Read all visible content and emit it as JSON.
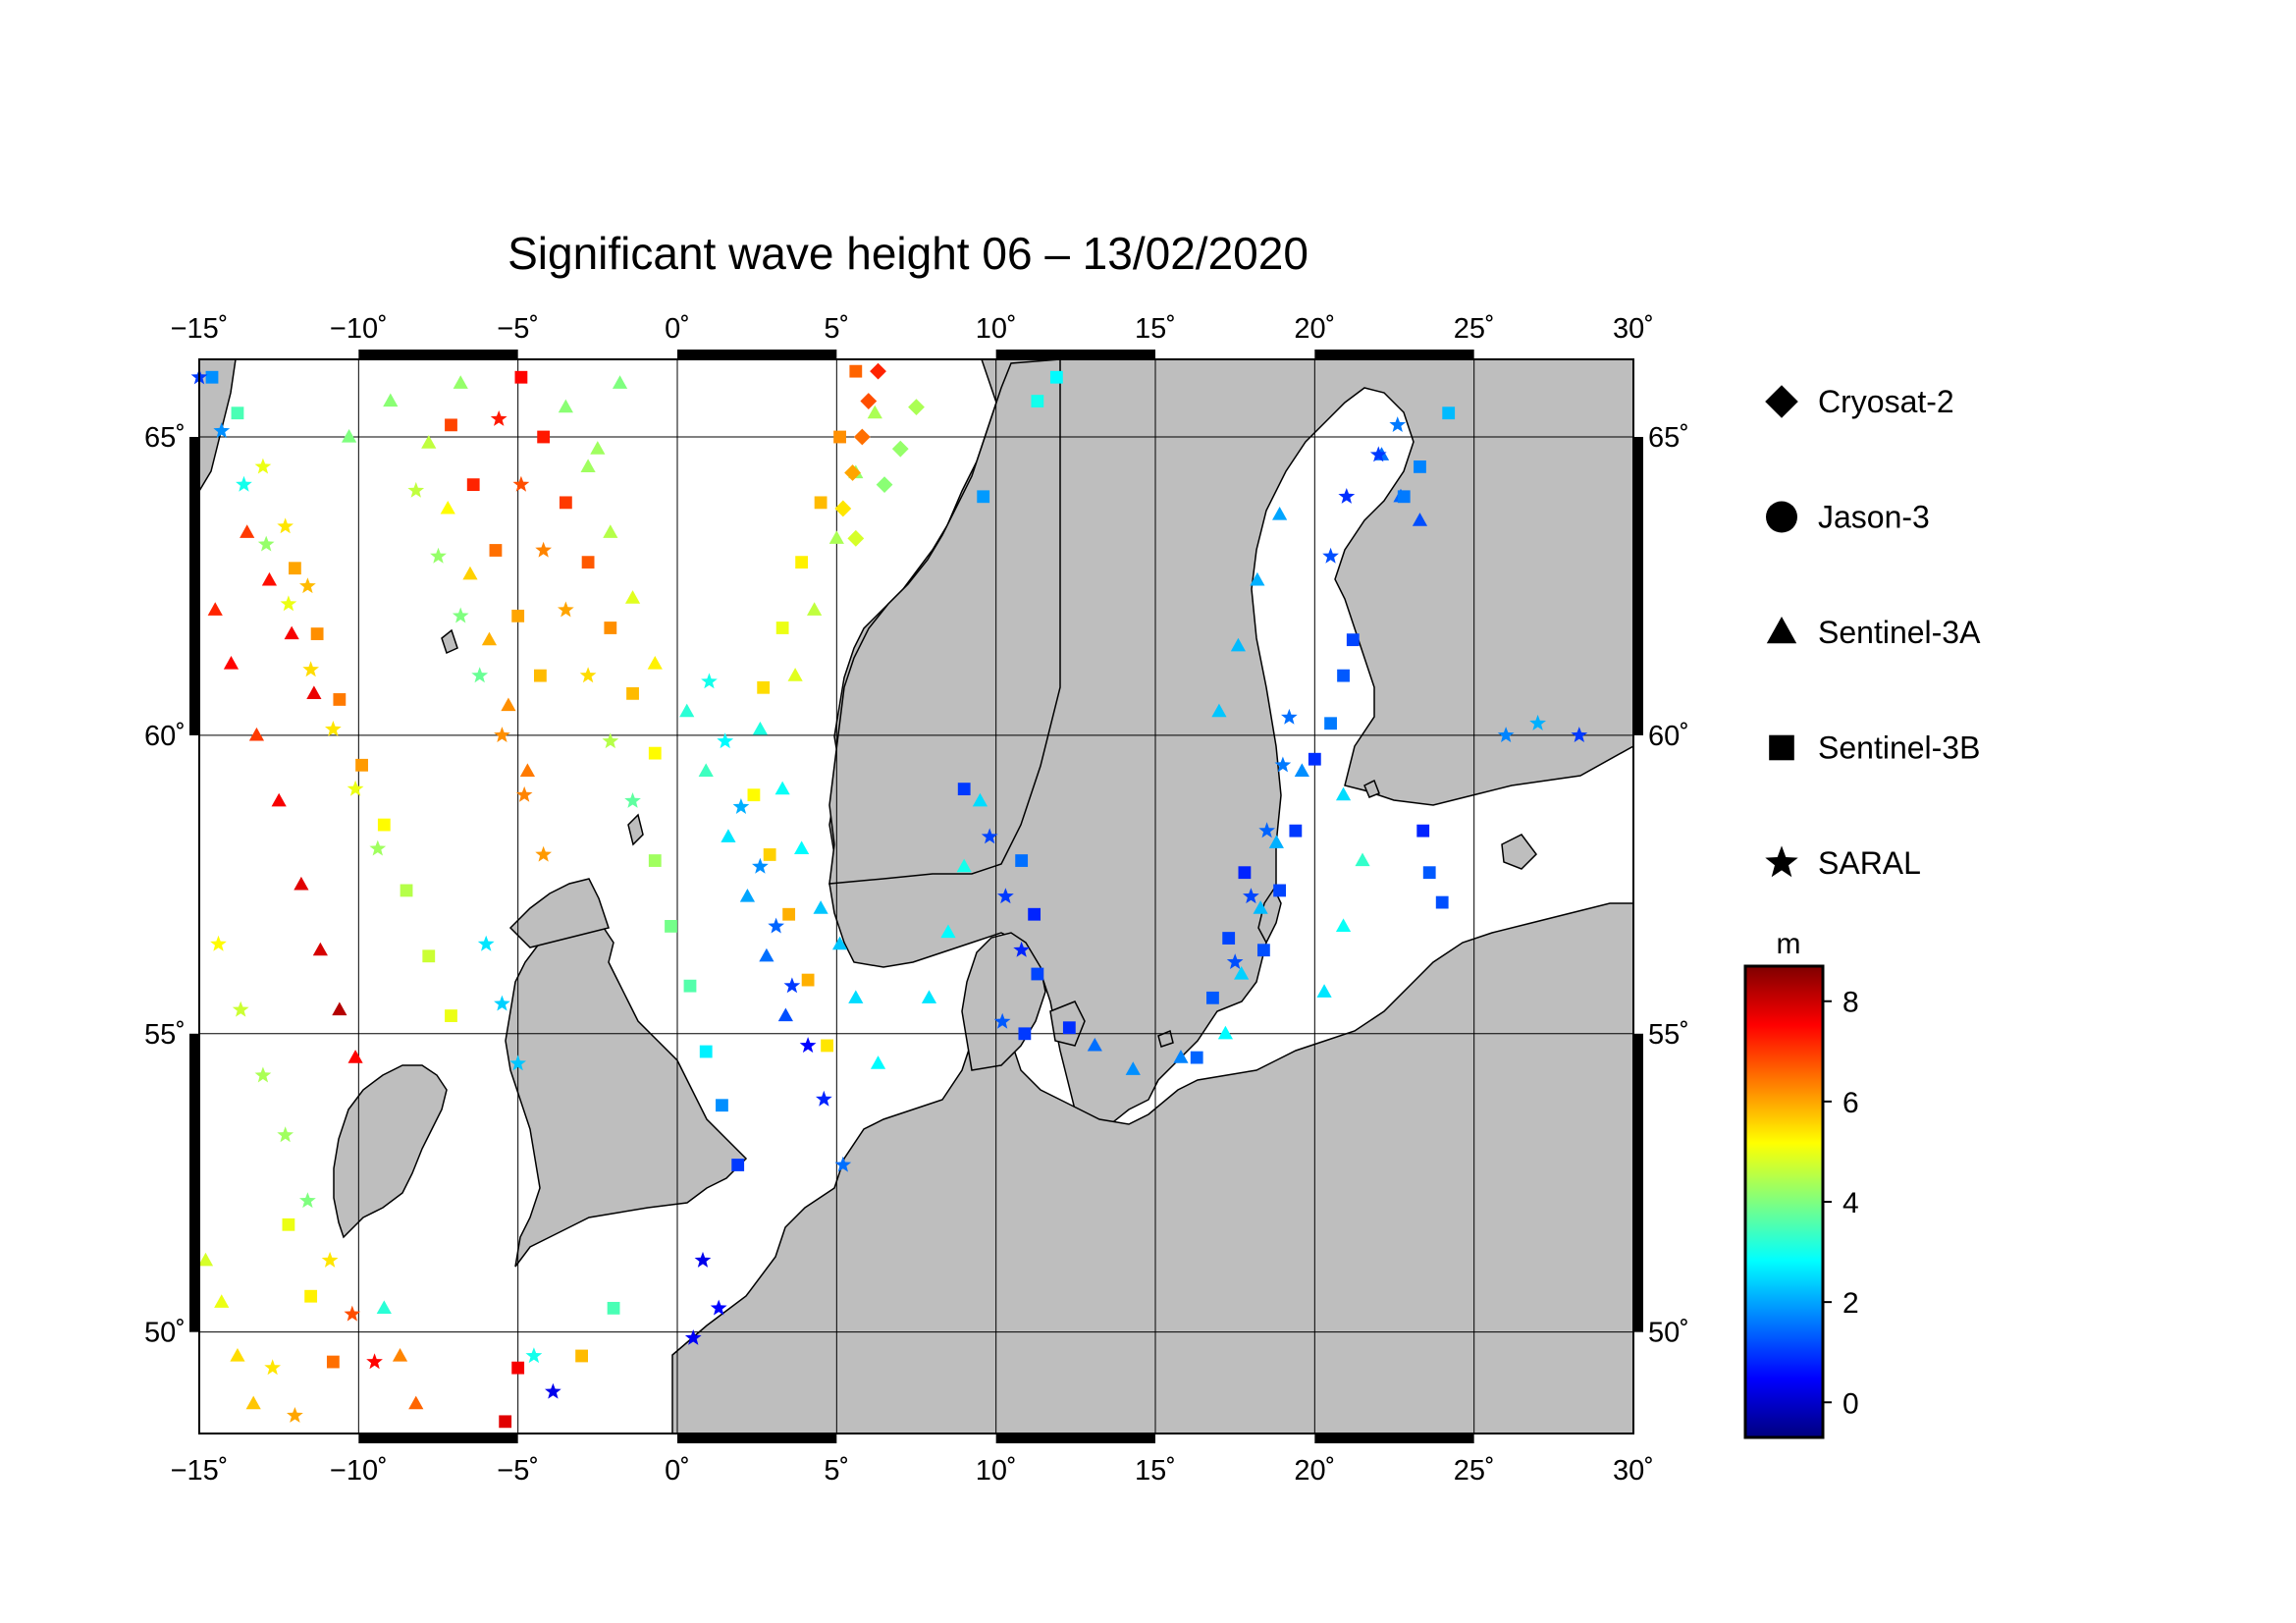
{
  "title": "Significant wave height 06 – 13/02/2020",
  "map": {
    "lon_range": [
      -15,
      30
    ],
    "lat_range": [
      48.3,
      66.3
    ],
    "lon_ticks": [
      -15,
      -10,
      -5,
      0,
      5,
      10,
      15,
      20,
      25,
      30
    ],
    "lat_ticks": [
      50,
      55,
      60,
      65
    ],
    "lon_tick_labels": [
      "−15˚",
      "−10˚",
      "−5˚",
      "0˚",
      "5˚",
      "10˚",
      "15˚",
      "20˚",
      "25˚",
      "30˚"
    ],
    "lat_tick_labels": [
      "50˚",
      "55˚",
      "60˚",
      "65˚"
    ],
    "land_color": "#bebebe",
    "sea_color": "#ffffff",
    "gridlines": true
  },
  "legend": {
    "items": [
      {
        "label": "Cryosat-2",
        "symbol": "diamond-icon"
      },
      {
        "label": "Jason-3",
        "symbol": "circle-icon"
      },
      {
        "label": "Sentinel-3A",
        "symbol": "triangle-icon"
      },
      {
        "label": "Sentinel-3B",
        "symbol": "square-icon"
      },
      {
        "label": "SARAL",
        "symbol": "star-icon"
      }
    ]
  },
  "colorbar": {
    "unit": "m",
    "range": [
      -0.7,
      8.7
    ],
    "ticks": [
      0,
      2,
      4,
      6,
      8
    ],
    "tick_labels": [
      "0",
      "2",
      "4",
      "6",
      "8"
    ],
    "palette": [
      "#00007f",
      "#0000ff",
      "#007fff",
      "#00ffff",
      "#7fff7f",
      "#ffff00",
      "#ff7f00",
      "#ff0000",
      "#7f0000"
    ]
  },
  "chart_data": {
    "type": "scatter",
    "title": "Significant wave height 06 – 13/02/2020",
    "xlim": [
      -15,
      30
    ],
    "ylim": [
      48.3,
      66.3
    ],
    "series": [
      {
        "name": "Sentinel-3A",
        "marker": "triangle",
        "points": [
          [
            -14.5,
            62.1,
            7.2
          ],
          [
            -14.0,
            61.2,
            7.5
          ],
          [
            -13.2,
            60.0,
            7.0
          ],
          [
            -12.5,
            58.9,
            7.6
          ],
          [
            -11.8,
            57.5,
            7.8
          ],
          [
            -11.2,
            56.4,
            7.9
          ],
          [
            -10.6,
            55.4,
            8.2
          ],
          [
            -10.1,
            54.6,
            7.5
          ],
          [
            -13.5,
            63.4,
            7.0
          ],
          [
            -12.8,
            62.6,
            7.4
          ],
          [
            -12.1,
            61.7,
            7.6
          ],
          [
            -11.4,
            60.7,
            7.7
          ],
          [
            -14.8,
            51.2,
            4.8
          ],
          [
            -14.3,
            50.5,
            5.0
          ],
          [
            -13.8,
            49.6,
            5.5
          ],
          [
            -13.3,
            48.8,
            5.7
          ],
          [
            -9.2,
            50.4,
            3.2
          ],
          [
            -8.7,
            49.6,
            6.3
          ],
          [
            -8.2,
            48.8,
            6.6
          ],
          [
            -7.8,
            64.9,
            4.6
          ],
          [
            -7.2,
            63.8,
            5.2
          ],
          [
            -6.5,
            62.7,
            5.6
          ],
          [
            -5.9,
            61.6,
            5.9
          ],
          [
            -5.3,
            60.5,
            6.2
          ],
          [
            -4.7,
            59.4,
            6.4
          ],
          [
            -3.5,
            65.5,
            4.1
          ],
          [
            -2.8,
            64.5,
            4.3
          ],
          [
            -2.1,
            63.4,
            4.5
          ],
          [
            -1.4,
            62.3,
            4.9
          ],
          [
            -0.7,
            61.2,
            5.3
          ],
          [
            0.3,
            60.4,
            3.2
          ],
          [
            0.9,
            59.4,
            3.4
          ],
          [
            1.6,
            58.3,
            2.6
          ],
          [
            2.2,
            57.3,
            2.0
          ],
          [
            2.8,
            56.3,
            1.5
          ],
          [
            3.4,
            55.3,
            1.2
          ],
          [
            2.6,
            60.1,
            3.1
          ],
          [
            3.3,
            59.1,
            2.9
          ],
          [
            3.9,
            58.1,
            2.8
          ],
          [
            4.5,
            57.1,
            2.3
          ],
          [
            5.1,
            56.5,
            2.3
          ],
          [
            5.6,
            55.6,
            2.5
          ],
          [
            6.3,
            54.5,
            2.8
          ],
          [
            9.5,
            58.9,
            2.5
          ],
          [
            9.0,
            57.8,
            3.0
          ],
          [
            8.5,
            56.7,
            2.8
          ],
          [
            7.9,
            55.6,
            2.6
          ],
          [
            6.2,
            65.4,
            4.4
          ],
          [
            5.6,
            64.4,
            4.2
          ],
          [
            5.0,
            63.3,
            4.4
          ],
          [
            4.3,
            62.1,
            4.6
          ],
          [
            3.7,
            61.0,
            4.9
          ],
          [
            -1.8,
            65.9,
            4.0
          ],
          [
            -2.5,
            64.8,
            4.3
          ],
          [
            18.9,
            63.7,
            2.0
          ],
          [
            18.2,
            62.6,
            2.1
          ],
          [
            17.6,
            61.5,
            2.2
          ],
          [
            17.0,
            60.4,
            2.3
          ],
          [
            19.6,
            59.4,
            1.8
          ],
          [
            18.8,
            58.2,
            2.1
          ],
          [
            18.3,
            57.1,
            2.2
          ],
          [
            17.7,
            56.0,
            2.4
          ],
          [
            17.2,
            55.0,
            2.8
          ],
          [
            20.9,
            59.0,
            2.5
          ],
          [
            21.5,
            57.9,
            3.3
          ],
          [
            20.9,
            56.8,
            2.9
          ],
          [
            20.3,
            55.7,
            2.6
          ],
          [
            22.1,
            64.7,
            1.5
          ],
          [
            22.7,
            64.0,
            1.4
          ],
          [
            23.3,
            63.6,
            1.2
          ],
          [
            13.1,
            54.8,
            1.5
          ],
          [
            14.3,
            54.4,
            1.8
          ],
          [
            15.8,
            54.6,
            1.7
          ],
          [
            -6.8,
            65.9,
            4.2
          ],
          [
            -9.0,
            65.6,
            4.1
          ],
          [
            -10.3,
            65.0,
            4.0
          ]
        ]
      },
      {
        "name": "Sentinel-3B",
        "marker": "square",
        "points": [
          [
            -14.6,
            66.0,
            1.8
          ],
          [
            -13.8,
            65.4,
            3.5
          ],
          [
            -12.0,
            62.8,
            6.0
          ],
          [
            -11.3,
            61.7,
            6.2
          ],
          [
            -10.6,
            60.6,
            6.4
          ],
          [
            -9.9,
            59.5,
            6.1
          ],
          [
            -9.2,
            58.5,
            5.2
          ],
          [
            -8.5,
            57.4,
            4.5
          ],
          [
            -7.8,
            56.3,
            4.7
          ],
          [
            -7.1,
            55.3,
            5.0
          ],
          [
            -7.1,
            65.2,
            6.9
          ],
          [
            -6.4,
            64.2,
            7.2
          ],
          [
            -5.7,
            63.1,
            6.5
          ],
          [
            -5.0,
            62.0,
            6.0
          ],
          [
            -4.3,
            61.0,
            5.8
          ],
          [
            -4.9,
            66.0,
            7.5
          ],
          [
            -4.2,
            65.0,
            7.3
          ],
          [
            -3.5,
            63.9,
            7.0
          ],
          [
            -2.8,
            62.9,
            6.7
          ],
          [
            -2.1,
            61.8,
            6.2
          ],
          [
            -1.4,
            60.7,
            5.8
          ],
          [
            -0.7,
            59.7,
            5.2
          ],
          [
            -0.7,
            57.9,
            4.3
          ],
          [
            -0.2,
            56.8,
            3.9
          ],
          [
            0.4,
            55.8,
            3.6
          ],
          [
            0.9,
            54.7,
            2.7
          ],
          [
            1.4,
            53.8,
            1.8
          ],
          [
            1.9,
            52.8,
            1.0
          ],
          [
            2.4,
            59.0,
            5.2
          ],
          [
            2.9,
            58.0,
            5.6
          ],
          [
            3.5,
            57.0,
            5.9
          ],
          [
            4.1,
            55.9,
            5.9
          ],
          [
            4.7,
            54.8,
            5.4
          ],
          [
            5.6,
            66.1,
            6.6
          ],
          [
            5.1,
            65.0,
            6.2
          ],
          [
            4.5,
            63.9,
            5.8
          ],
          [
            3.9,
            62.9,
            5.3
          ],
          [
            3.3,
            61.8,
            5.0
          ],
          [
            2.7,
            60.8,
            5.5
          ],
          [
            10.8,
            57.9,
            1.5
          ],
          [
            11.2,
            57.0,
            0.8
          ],
          [
            11.3,
            56.0,
            1.1
          ],
          [
            10.9,
            55.0,
            1.0
          ],
          [
            9.0,
            59.1,
            1.0
          ],
          [
            12.3,
            55.1,
            0.9
          ],
          [
            17.8,
            57.7,
            0.8
          ],
          [
            17.3,
            56.6,
            1.1
          ],
          [
            16.8,
            55.6,
            1.3
          ],
          [
            16.3,
            54.6,
            1.4
          ],
          [
            21.2,
            61.6,
            1.1
          ],
          [
            20.9,
            61.0,
            1.3
          ],
          [
            20.5,
            60.2,
            1.6
          ],
          [
            20.0,
            59.6,
            0.9
          ],
          [
            19.4,
            58.4,
            1.0
          ],
          [
            18.9,
            57.4,
            1.1
          ],
          [
            18.4,
            56.4,
            1.2
          ],
          [
            23.4,
            58.4,
            0.8
          ],
          [
            23.6,
            57.7,
            1.3
          ],
          [
            24.0,
            57.2,
            1.2
          ],
          [
            22.8,
            64.0,
            1.6
          ],
          [
            23.3,
            64.5,
            1.7
          ],
          [
            -2.0,
            50.4,
            3.5
          ],
          [
            -3.0,
            49.6,
            5.8
          ],
          [
            -10.8,
            49.5,
            6.5
          ],
          [
            -11.5,
            50.6,
            5.3
          ],
          [
            -12.2,
            51.8,
            5.0
          ],
          [
            -5.4,
            48.5,
            7.8
          ],
          [
            -5.0,
            49.4,
            7.6
          ],
          [
            24.2,
            65.4,
            2.2
          ],
          [
            9.6,
            64.0,
            1.9
          ],
          [
            11.3,
            65.6,
            3.0
          ],
          [
            11.9,
            66.0,
            2.8
          ]
        ]
      },
      {
        "name": "SARAL",
        "marker": "star",
        "points": [
          [
            -15.0,
            66.0,
            1.0
          ],
          [
            -14.3,
            65.1,
            1.8
          ],
          [
            -13.6,
            64.2,
            3.0
          ],
          [
            -12.9,
            63.2,
            4.2
          ],
          [
            -12.2,
            62.2,
            5.0
          ],
          [
            -11.5,
            61.1,
            5.5
          ],
          [
            -10.8,
            60.1,
            5.4
          ],
          [
            -10.1,
            59.1,
            5.0
          ],
          [
            -9.4,
            58.1,
            4.3
          ],
          [
            -14.4,
            56.5,
            5.2
          ],
          [
            -13.7,
            55.4,
            4.7
          ],
          [
            -13.0,
            54.3,
            4.4
          ],
          [
            -12.3,
            53.3,
            4.3
          ],
          [
            -11.6,
            52.2,
            4.0
          ],
          [
            -10.9,
            51.2,
            5.4
          ],
          [
            -10.2,
            50.3,
            6.8
          ],
          [
            -9.5,
            49.5,
            7.5
          ],
          [
            -13.0,
            64.5,
            5.0
          ],
          [
            -12.3,
            63.5,
            5.4
          ],
          [
            -11.6,
            62.5,
            5.8
          ],
          [
            -8.2,
            64.1,
            4.6
          ],
          [
            -7.5,
            63.0,
            4.2
          ],
          [
            -6.8,
            62.0,
            4.0
          ],
          [
            -6.2,
            61.0,
            3.8
          ],
          [
            -5.5,
            60.0,
            6.2
          ],
          [
            -4.8,
            59.0,
            6.3
          ],
          [
            -4.2,
            58.0,
            6.1
          ],
          [
            -5.6,
            65.3,
            7.3
          ],
          [
            -4.9,
            64.2,
            6.8
          ],
          [
            -4.2,
            63.1,
            6.3
          ],
          [
            -3.5,
            62.1,
            6.0
          ],
          [
            -2.8,
            61.0,
            5.5
          ],
          [
            -2.1,
            59.9,
            4.5
          ],
          [
            -1.4,
            58.9,
            3.7
          ],
          [
            1.0,
            60.9,
            3.0
          ],
          [
            1.5,
            59.9,
            2.8
          ],
          [
            2.0,
            58.8,
            2.1
          ],
          [
            2.6,
            57.8,
            1.8
          ],
          [
            3.1,
            56.8,
            1.4
          ],
          [
            3.6,
            55.8,
            1.0
          ],
          [
            4.1,
            54.8,
            0.5
          ],
          [
            4.6,
            53.9,
            0.8
          ],
          [
            5.2,
            52.8,
            1.5
          ],
          [
            -6.0,
            56.5,
            2.6
          ],
          [
            -5.5,
            55.5,
            2.4
          ],
          [
            -5.0,
            54.5,
            2.3
          ],
          [
            0.8,
            51.2,
            0.3
          ],
          [
            1.3,
            50.4,
            0.5
          ],
          [
            0.5,
            49.9,
            0.4
          ],
          [
            9.8,
            58.3,
            1.1
          ],
          [
            10.3,
            57.3,
            1.0
          ],
          [
            10.8,
            56.4,
            0.8
          ],
          [
            10.2,
            55.2,
            1.3
          ],
          [
            19.2,
            60.3,
            1.5
          ],
          [
            19.0,
            59.5,
            1.6
          ],
          [
            18.5,
            58.4,
            1.4
          ],
          [
            18.0,
            57.3,
            1.1
          ],
          [
            17.5,
            56.2,
            1.2
          ],
          [
            22.0,
            64.7,
            1.0
          ],
          [
            22.6,
            65.2,
            1.6
          ],
          [
            21.0,
            64.0,
            0.9
          ],
          [
            20.5,
            63.0,
            1.2
          ],
          [
            26.0,
            60.0,
            1.7
          ],
          [
            27.0,
            60.2,
            2.1
          ],
          [
            28.3,
            60.0,
            1.0
          ],
          [
            -3.9,
            49.0,
            0.3
          ],
          [
            -4.5,
            49.6,
            3.0
          ],
          [
            -12.7,
            49.4,
            5.4
          ],
          [
            -12.0,
            48.6,
            6.0
          ]
        ]
      },
      {
        "name": "Cryosat-2",
        "marker": "diamond",
        "points": [
          [
            6.3,
            66.1,
            7.2
          ],
          [
            6.0,
            65.6,
            6.8
          ],
          [
            5.8,
            65.0,
            6.5
          ],
          [
            5.5,
            64.4,
            6.0
          ],
          [
            5.2,
            63.8,
            5.4
          ],
          [
            5.6,
            63.3,
            4.8
          ],
          [
            7.5,
            65.5,
            4.4
          ],
          [
            7.0,
            64.8,
            4.2
          ],
          [
            6.5,
            64.2,
            4.1
          ]
        ]
      }
    ]
  }
}
